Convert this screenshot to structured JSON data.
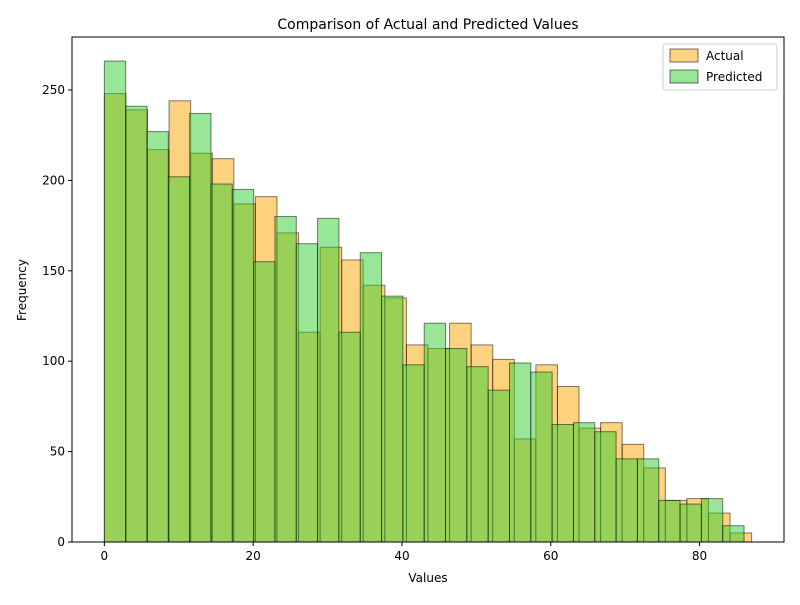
{
  "chart_data": {
    "type": "bar",
    "title": "Comparison of Actual and Predicted Values",
    "xlabel": "Values",
    "ylabel": "Frequency",
    "xlim": [
      -4.35,
      91.35
    ],
    "ylim": [
      0,
      279.3
    ],
    "xticks": [
      0,
      20,
      40,
      60,
      80
    ],
    "yticks": [
      0,
      50,
      100,
      150,
      200,
      250
    ],
    "grid": false,
    "legend_position": "top-right",
    "series": [
      {
        "name": "Actual",
        "color": "#ffa500",
        "bin_start": 0,
        "bin_width": 2.9,
        "values": [
          248,
          239,
          217,
          244,
          215,
          212,
          187,
          191,
          171,
          116,
          163,
          156,
          142,
          135,
          109,
          107,
          121,
          109,
          101,
          57,
          98,
          86,
          63,
          66,
          54,
          41,
          23,
          24,
          16,
          5
        ]
      },
      {
        "name": "Predicted",
        "color": "#32cd32",
        "bin_start": 0,
        "bin_width": 2.866,
        "values": [
          266,
          241,
          227,
          202,
          237,
          198,
          195,
          155,
          180,
          165,
          179,
          116,
          160,
          136,
          98,
          121,
          107,
          97,
          84,
          99,
          94,
          65,
          66,
          61,
          46,
          46,
          23,
          21,
          24,
          9
        ]
      }
    ]
  }
}
